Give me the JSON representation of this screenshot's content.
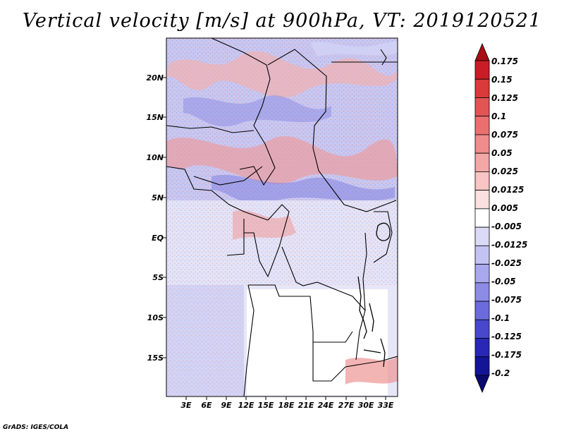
{
  "title": "Vertical velocity [m/s] at 900hPa, VT: 2019120521",
  "credit": "GrADS: IGES/COLA",
  "map": {
    "lat_labels": [
      "20N",
      "15N",
      "10N",
      "5N",
      "EQ",
      "5S",
      "10S",
      "15S"
    ],
    "lon_labels": [
      "3E",
      "6E",
      "9E",
      "12E",
      "15E",
      "18E",
      "21E",
      "24E",
      "27E",
      "30E",
      "33E"
    ]
  },
  "colorbar": {
    "labels": [
      "0.175",
      "0.15",
      "0.125",
      "0.1",
      "0.075",
      "0.05",
      "0.025",
      "0.0125",
      "0.005",
      "-0.005",
      "-0.0125",
      "-0.025",
      "-0.05",
      "-0.075",
      "-0.1",
      "-0.125",
      "-0.175",
      "-0.2"
    ],
    "colors": [
      "#a50f15",
      "#c81d25",
      "#d93a3a",
      "#e25555",
      "#ea7070",
      "#ef8c8c",
      "#f4a7a7",
      "#f8c4c4",
      "#fbe0e0",
      "#ffffff",
      "#dadaf7",
      "#c3c3f3",
      "#a8a8ee",
      "#8c8ce6",
      "#6b6bdc",
      "#4848cc",
      "#2828b4",
      "#141496",
      "#0a0a6e"
    ]
  }
}
